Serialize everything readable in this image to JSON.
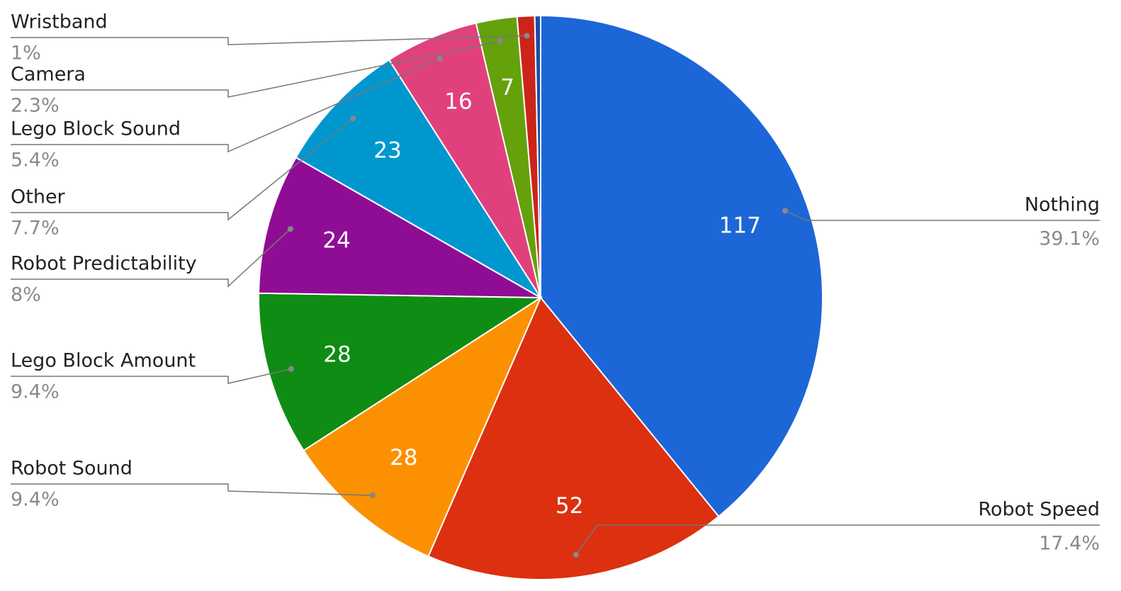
{
  "chart_data": {
    "type": "pie",
    "categories": [
      "Nothing",
      "Robot Speed",
      "Robot Sound",
      "Lego Block Amount",
      "Robot Predictability",
      "Other",
      "Lego Block Sound",
      "Camera",
      "Wristband",
      null
    ],
    "values": [
      117,
      52,
      28,
      28,
      24,
      23,
      16,
      7,
      3,
      1
    ],
    "percent_labels": [
      "39.1%",
      "17.4%",
      "9.4%",
      "9.4%",
      "8%",
      "7.7%",
      "5.4%",
      "2.3%",
      "1%",
      null
    ],
    "colors": [
      "#1c66d7",
      "#dc3010",
      "#fb9100",
      "#0f8c14",
      "#8f0d95",
      "#0097cf",
      "#e0417c",
      "#65a10b",
      "#cc2419",
      "#1b4fa6"
    ]
  }
}
